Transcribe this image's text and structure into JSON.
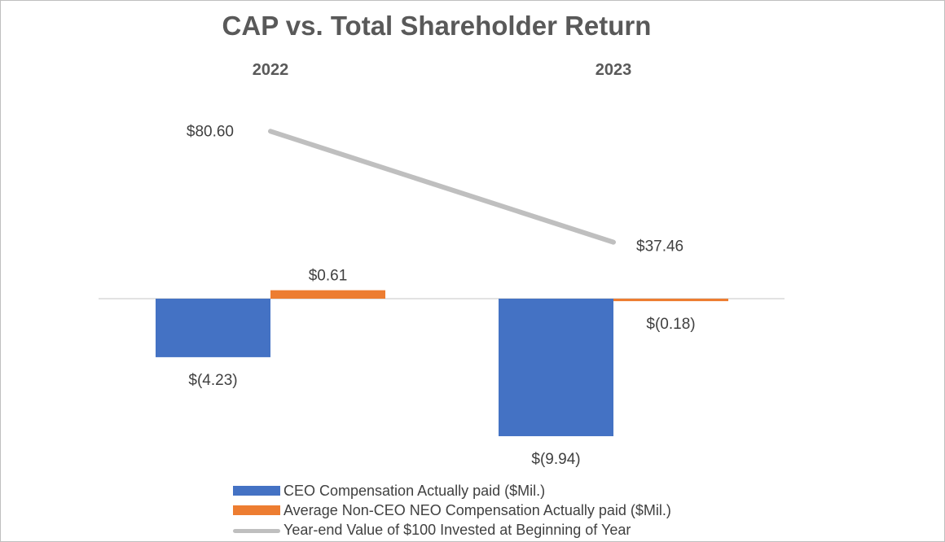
{
  "chart_data": {
    "type": "bar",
    "title": "CAP vs. Total Shareholder Return",
    "categories": [
      "2022",
      "2023"
    ],
    "series": [
      {
        "name": "CEO Compensation Actually paid ($Mil.)",
        "kind": "bar",
        "color": "#4472C4",
        "values": [
          -4.23,
          -9.94
        ],
        "labels": [
          "$(4.23)",
          "$(9.94)"
        ]
      },
      {
        "name": "Average Non-CEO NEO Compensation Actually paid ($Mil.)",
        "kind": "bar",
        "color": "#ED7D31",
        "values": [
          0.61,
          -0.18
        ],
        "labels": [
          "$0.61",
          "$(0.18)"
        ]
      },
      {
        "name": "Year-end Value of $100 Invested at Beginning of Year",
        "kind": "line",
        "color": "#BFBFBF",
        "values": [
          80.6,
          37.46
        ],
        "labels": [
          "$80.60",
          "$37.46"
        ]
      }
    ],
    "legend": "bottom"
  }
}
